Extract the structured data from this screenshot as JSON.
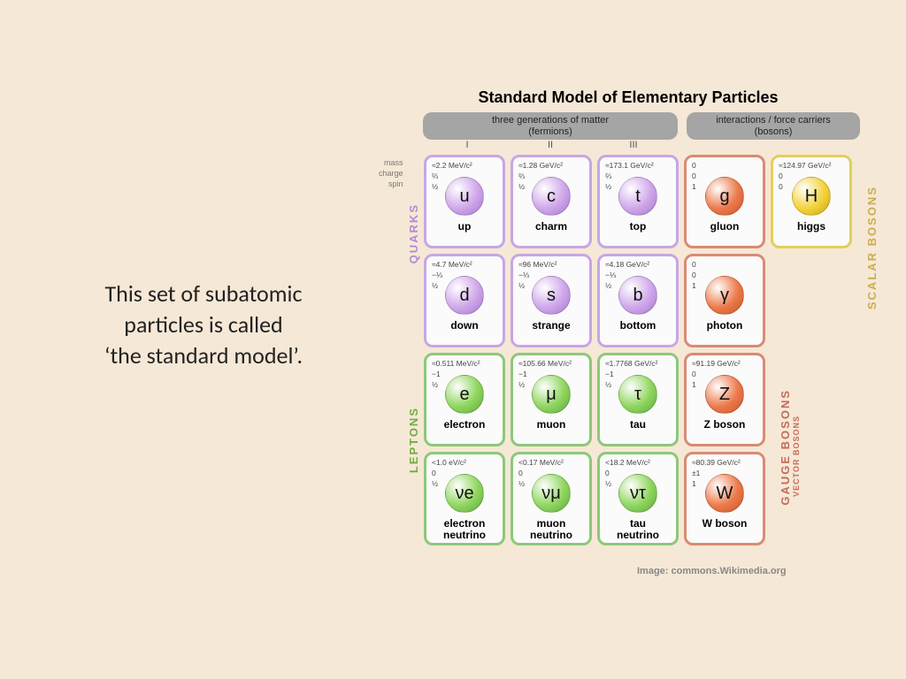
{
  "caption_lines": {
    "l1": "This set of subatomic",
    "l2": "particles is called",
    "l3": "‘the standard model’."
  },
  "chart": {
    "title": "Standard Model of Elementary Particles",
    "header_fermions_l1": "three generations of matter",
    "header_fermions_l2": "(fermions)",
    "header_bosons_l1": "interactions / force carriers",
    "header_bosons_l2": "(bosons)",
    "gen": {
      "g1": "I",
      "g2": "II",
      "g3": "III"
    },
    "prop_labels": {
      "mass": "mass",
      "charge": "charge",
      "spin": "spin"
    },
    "group_labels": {
      "quarks": "QUARKS",
      "leptons": "LEPTONS",
      "gauge": "GAUGE BOSONS",
      "vector": "VECTOR BOSONS",
      "scalar": "SCALAR BOSONS"
    },
    "colors": {
      "quark_border": "#c6a6e6",
      "lepton_border": "#8bc97a",
      "gauge_border": "#d98b74",
      "scalar_border": "#e3cf5a",
      "quark_ball": "#cfa7ea",
      "quark_ball_dark": "#a678cf",
      "lepton_ball": "#8fd65f",
      "lepton_ball_dark": "#5fa83d",
      "gauge_ball": "#ec7a4b",
      "gauge_ball_dark": "#c95528",
      "scalar_ball": "#f3d23a",
      "scalar_ball_dark": "#caa514",
      "label_quarks": "#b38ad6",
      "label_leptons": "#6fae3e",
      "label_gauge": "#c66a5a",
      "label_scalar": "#c9ae4d",
      "header_bar": "#a5a5a5"
    },
    "particles": {
      "u": {
        "sym": "u",
        "name": "up",
        "mass": "≈2.2 MeV/c²",
        "charge": "⅔",
        "spin": "½"
      },
      "c": {
        "sym": "c",
        "name": "charm",
        "mass": "≈1.28 GeV/c²",
        "charge": "⅔",
        "spin": "½"
      },
      "t": {
        "sym": "t",
        "name": "top",
        "mass": "≈173.1 GeV/c²",
        "charge": "⅔",
        "spin": "½"
      },
      "d": {
        "sym": "d",
        "name": "down",
        "mass": "≈4.7 MeV/c²",
        "charge": "−⅓",
        "spin": "½"
      },
      "s": {
        "sym": "s",
        "name": "strange",
        "mass": "≈96 MeV/c²",
        "charge": "−⅓",
        "spin": "½"
      },
      "b": {
        "sym": "b",
        "name": "bottom",
        "mass": "≈4.18 GeV/c²",
        "charge": "−⅓",
        "spin": "½"
      },
      "e": {
        "sym": "e",
        "name": "electron",
        "mass": "≈0.511 MeV/c²",
        "charge": "−1",
        "spin": "½"
      },
      "mu": {
        "sym": "μ",
        "name": "muon",
        "mass": "≈105.66 MeV/c²",
        "charge": "−1",
        "spin": "½"
      },
      "tau": {
        "sym": "τ",
        "name": "tau",
        "mass": "≈1.7768 GeV/c²",
        "charge": "−1",
        "spin": "½"
      },
      "ve": {
        "sym": "νe",
        "name": "electron\nneutrino",
        "mass": "<1.0 eV/c²",
        "charge": "0",
        "spin": "½"
      },
      "vmu": {
        "sym": "νμ",
        "name": "muon\nneutrino",
        "mass": "<0.17 MeV/c²",
        "charge": "0",
        "spin": "½"
      },
      "vtau": {
        "sym": "ντ",
        "name": "tau\nneutrino",
        "mass": "<18.2 MeV/c²",
        "charge": "0",
        "spin": "½"
      },
      "g": {
        "sym": "g",
        "name": "gluon",
        "mass": "0",
        "charge": "0",
        "spin": "1"
      },
      "ph": {
        "sym": "γ",
        "name": "photon",
        "mass": "0",
        "charge": "0",
        "spin": "1"
      },
      "Z": {
        "sym": "Z",
        "name": "Z boson",
        "mass": "≈91.19 GeV/c²",
        "charge": "0",
        "spin": "1"
      },
      "W": {
        "sym": "W",
        "name": "W boson",
        "mass": "≈80.39 GeV/c²",
        "charge": "±1",
        "spin": "1"
      },
      "H": {
        "sym": "H",
        "name": "higgs",
        "mass": "≈124.97 GeV/c²",
        "charge": "0",
        "spin": "0"
      }
    },
    "credit": "Image: commons.Wikimedia.org"
  }
}
